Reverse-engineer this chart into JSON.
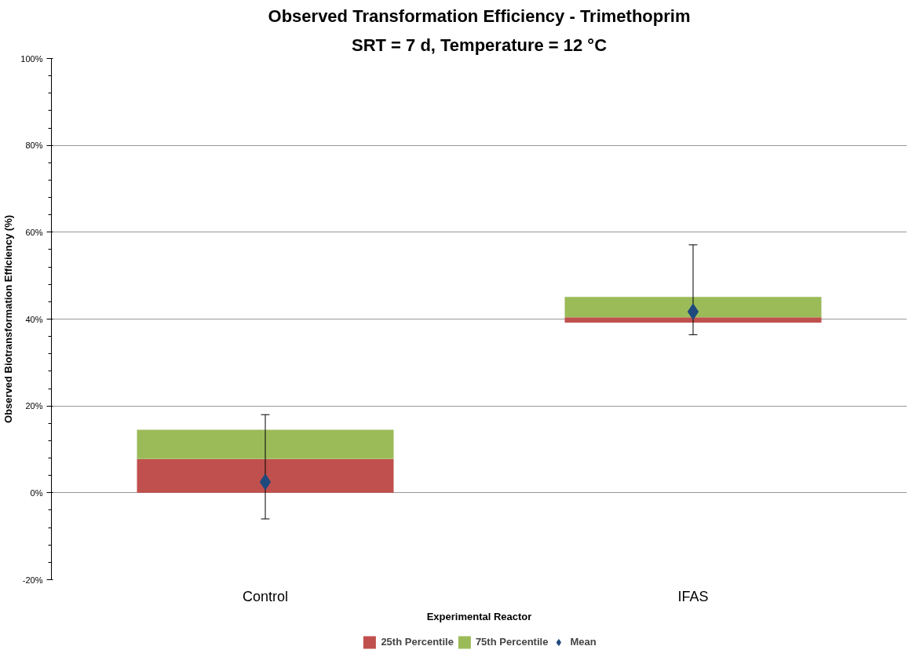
{
  "chart_data": {
    "type": "bar",
    "title": "Observed Transformation Efficiency - Trimethoprim",
    "subtitle": "SRT = 7 d, Temperature = 12 °C",
    "xlabel": "Experimental Reactor",
    "ylabel": "Observed Biotransformation Efficiency (%)",
    "categories": [
      "Control",
      "IFAS"
    ],
    "series": [
      {
        "name": "25th Percentile",
        "color": "#c0504d",
        "values": [
          7.8,
          1.2
        ],
        "base": [
          0,
          39.2
        ]
      },
      {
        "name": "75th Percentile",
        "color": "#9bbb59",
        "values": [
          6.7,
          4.7
        ],
        "base": [
          7.8,
          40.4
        ]
      },
      {
        "name": "Mean",
        "type": "scatter",
        "marker": "diamond",
        "color": "#1f497d",
        "values": [
          2.5,
          41.7
        ],
        "errors": [
          [
            -6,
            18
          ],
          [
            36.4,
            57.1
          ]
        ]
      }
    ],
    "ylim": [
      -20,
      100
    ],
    "yticks": [
      {
        "value": -20,
        "label": "-20%"
      },
      {
        "value": 0,
        "label": "0%"
      },
      {
        "value": 20,
        "label": "20%"
      },
      {
        "value": 40,
        "label": "40%"
      },
      {
        "value": 60,
        "label": "60%"
      },
      {
        "value": 80,
        "label": "80%"
      },
      {
        "value": 100,
        "label": "100%"
      }
    ],
    "grid": "y",
    "legend": "bottom"
  }
}
